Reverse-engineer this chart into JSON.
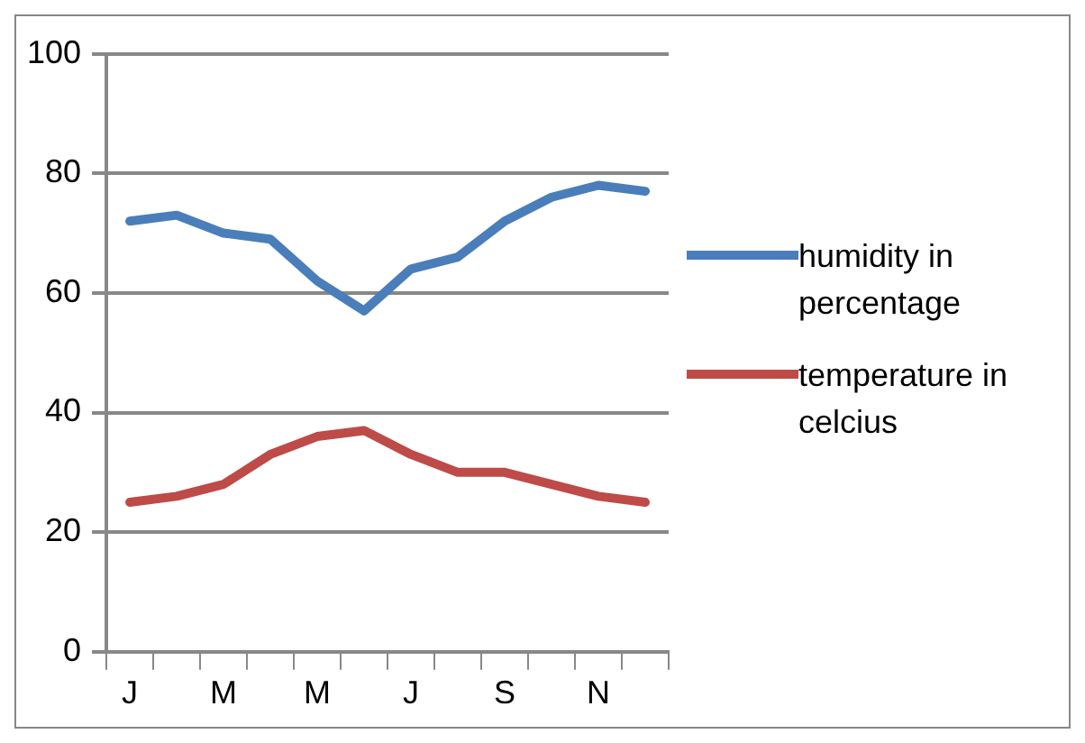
{
  "chart_data": {
    "type": "line",
    "categories": [
      "J",
      null,
      "M",
      null,
      "M",
      null,
      "J",
      null,
      "S",
      null,
      "N",
      null
    ],
    "series": [
      {
        "name": "humidity in percentage",
        "color": "#4a7ebb",
        "values": [
          72,
          73,
          70,
          69,
          62,
          57,
          64,
          66,
          72,
          76,
          78,
          77
        ]
      },
      {
        "name": "temperature in celcius",
        "color": "#be4b48",
        "values": [
          25,
          26,
          28,
          33,
          36,
          37,
          33,
          30,
          30,
          28,
          26,
          25
        ]
      }
    ],
    "ylim": [
      0,
      100
    ],
    "yticks": [
      0,
      20,
      40,
      60,
      80,
      100
    ],
    "grid": "y",
    "legend": "right",
    "marker": "none",
    "line_style": "solid"
  }
}
